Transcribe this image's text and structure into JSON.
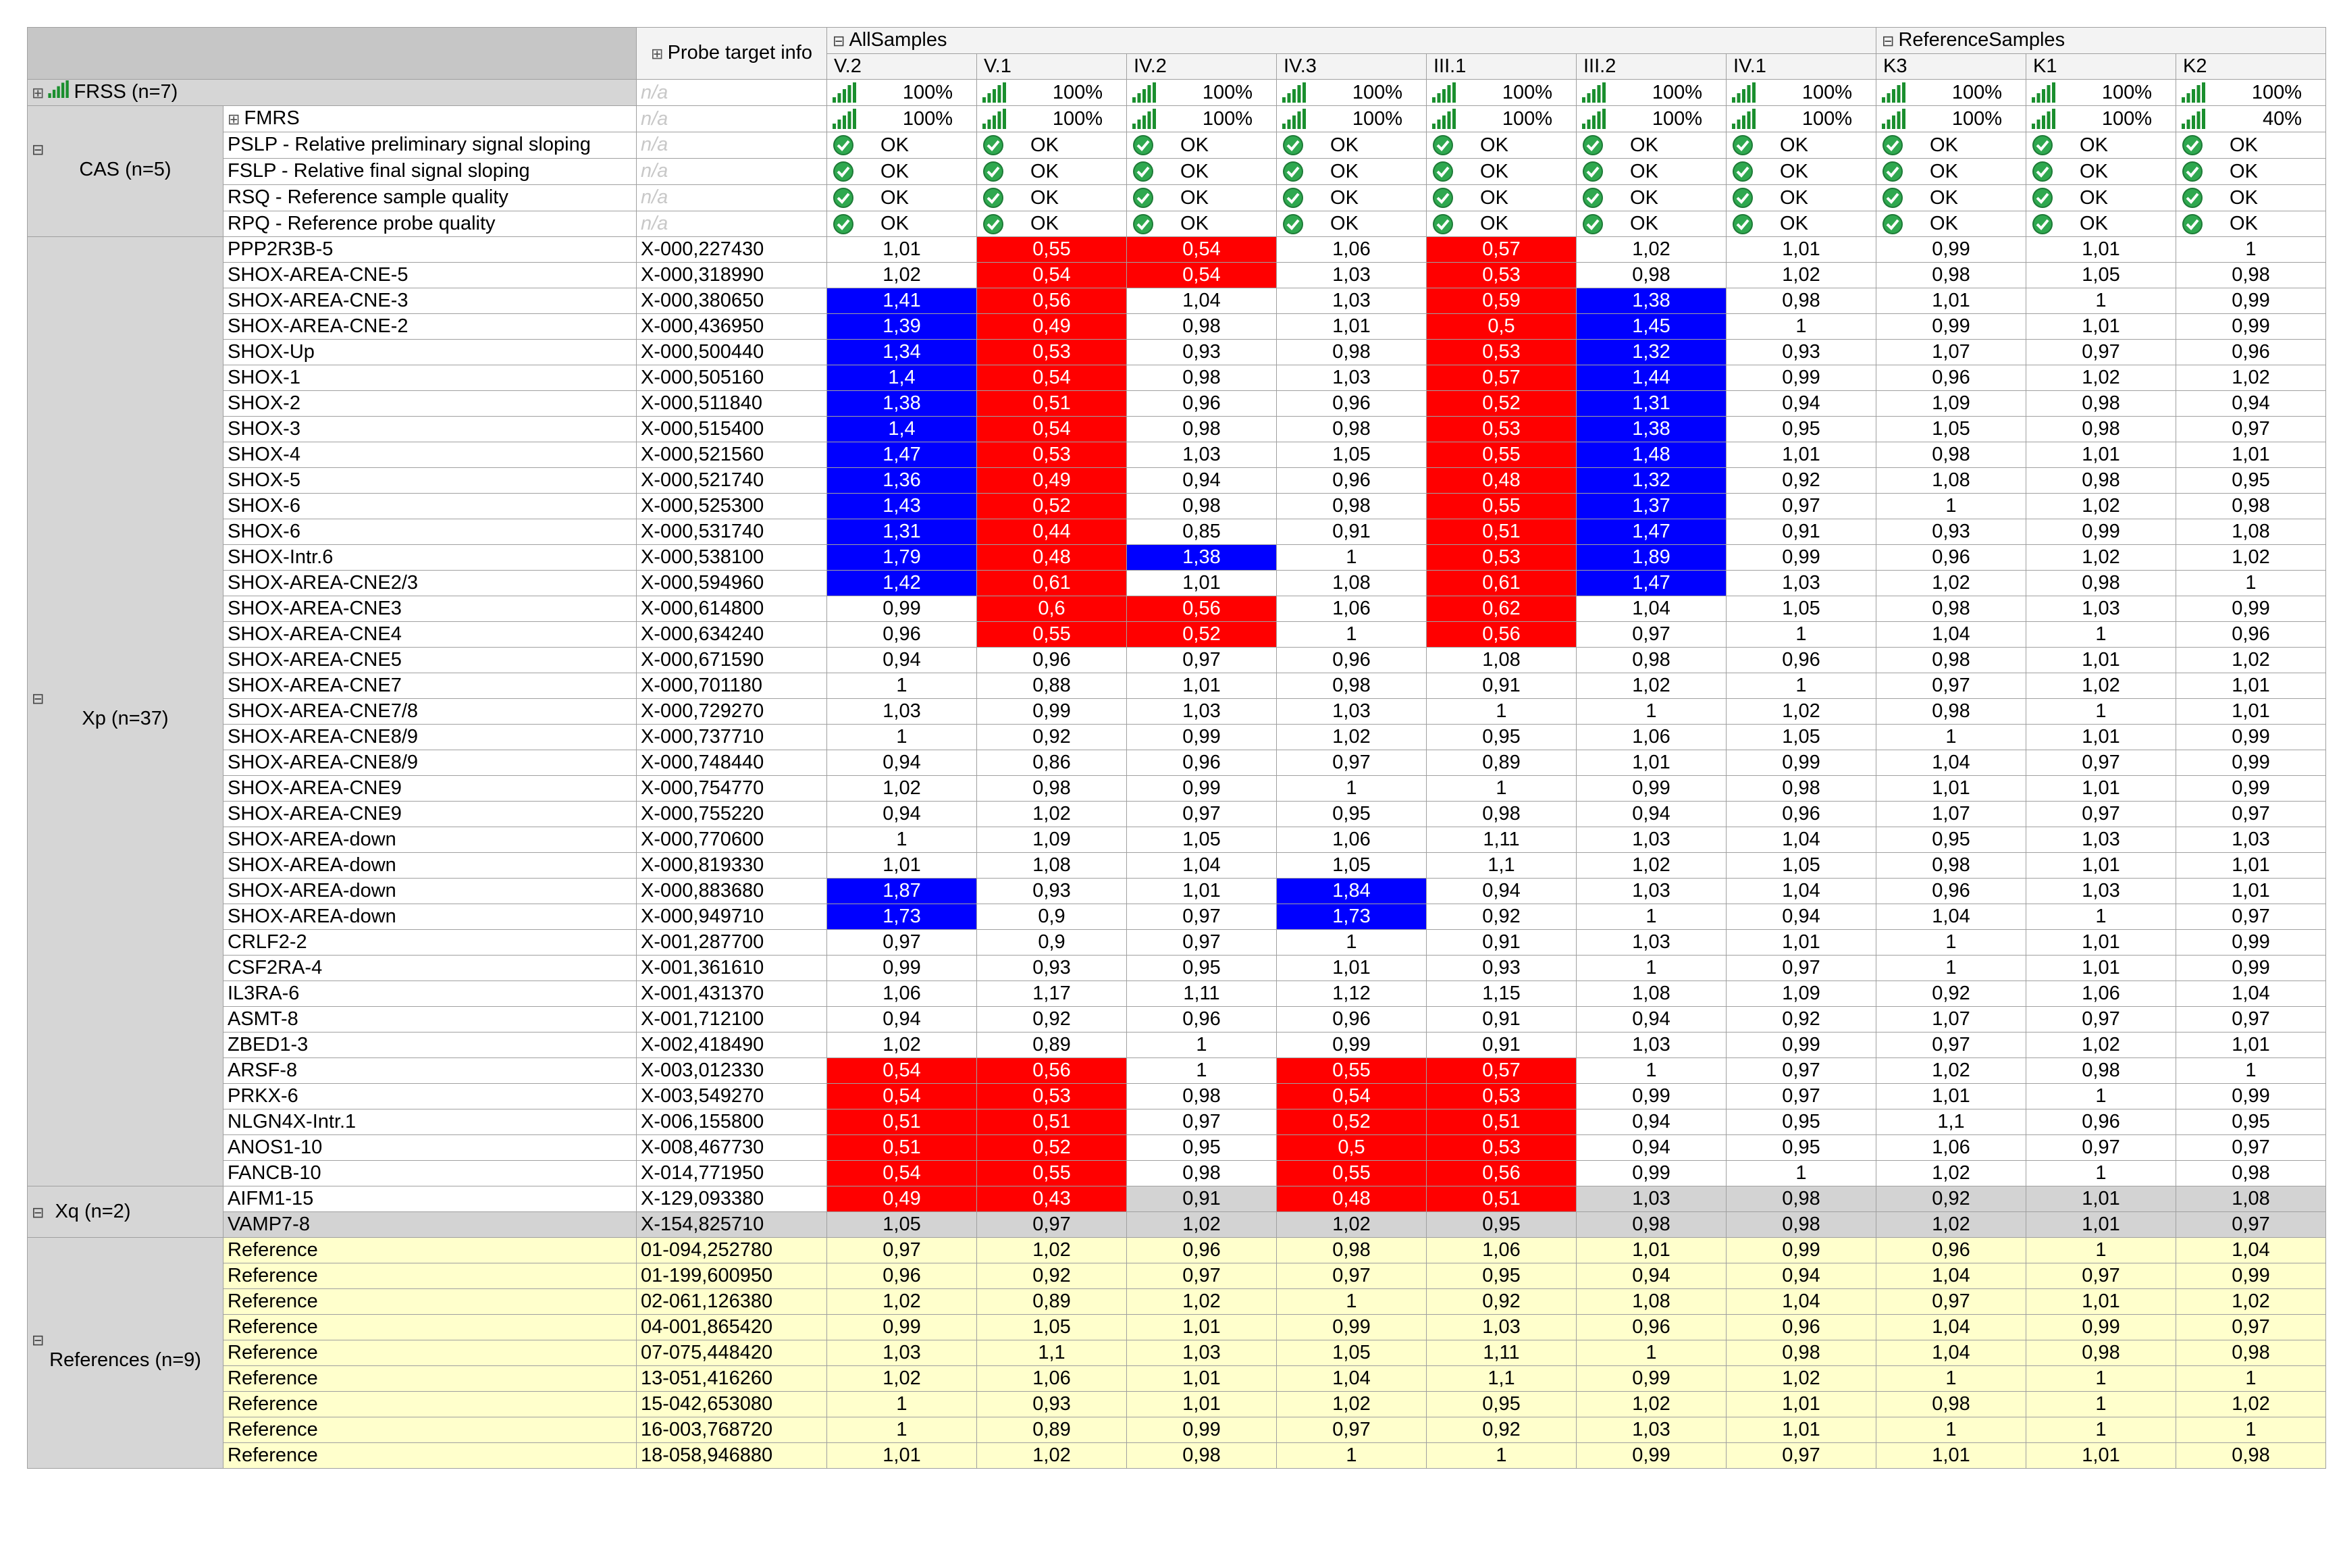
{
  "header": {
    "probe_target_info": "Probe target info",
    "groups": [
      {
        "label": "AllSamples",
        "span": 7
      },
      {
        "label": "ReferenceSamples",
        "span": 3
      }
    ],
    "samples": [
      "V.2",
      "V.1",
      "IV.2",
      "IV.3",
      "III.1",
      "III.2",
      "IV.1",
      "K3",
      "K1",
      "K2"
    ]
  },
  "colors": {
    "decrease": "#ff0000",
    "increase": "#0000ff",
    "reference_row": "#ffffcc",
    "x_row_alt": "#d3d3d3",
    "header_bg": "#c6c6c6",
    "quality_bars": "#1a8f2e"
  },
  "frss": {
    "label": "FRSS (n=7)",
    "probe": "n/a",
    "values": [
      "100%",
      "100%",
      "100%",
      "100%",
      "100%",
      "100%",
      "100%",
      "100%",
      "100%",
      "100%"
    ]
  },
  "cas": {
    "label": "CAS (n=5)",
    "rows": [
      {
        "name": "FMRS",
        "type": "quality",
        "probe": "n/a",
        "values": [
          "100%",
          "100%",
          "100%",
          "100%",
          "100%",
          "100%",
          "100%",
          "100%",
          "100%",
          "40%"
        ]
      },
      {
        "name": "PSLP - Relative preliminary signal sloping",
        "type": "ok",
        "probe": "n/a",
        "values": [
          "OK",
          "OK",
          "OK",
          "OK",
          "OK",
          "OK",
          "OK",
          "OK",
          "OK",
          "OK"
        ]
      },
      {
        "name": "FSLP - Relative final signal sloping",
        "type": "ok",
        "probe": "n/a",
        "values": [
          "OK",
          "OK",
          "OK",
          "OK",
          "OK",
          "OK",
          "OK",
          "OK",
          "OK",
          "OK"
        ]
      },
      {
        "name": "RSQ - Reference sample quality",
        "type": "ok",
        "probe": "n/a",
        "values": [
          "OK",
          "OK",
          "OK",
          "OK",
          "OK",
          "OK",
          "OK",
          "OK",
          "OK",
          "OK"
        ]
      },
      {
        "name": "RPQ - Reference probe quality",
        "type": "ok",
        "probe": "n/a",
        "values": [
          "OK",
          "OK",
          "OK",
          "OK",
          "OK",
          "OK",
          "OK",
          "OK",
          "OK",
          "OK"
        ]
      }
    ]
  },
  "xp": {
    "label": "Xp (n=37)",
    "rows": [
      {
        "name": "PPP2R3B-5",
        "probe": "X-000,227430",
        "values": [
          "1,01",
          "0,55",
          "0,54",
          "1,06",
          "0,57",
          "1,02",
          "1,01",
          "0,99",
          "1,01",
          "1"
        ],
        "flags": "WRRWRWWWWW"
      },
      {
        "name": "SHOX-AREA-CNE-5",
        "probe": "X-000,318990",
        "values": [
          "1,02",
          "0,54",
          "0,54",
          "1,03",
          "0,53",
          "0,98",
          "1,02",
          "0,98",
          "1,05",
          "0,98"
        ],
        "flags": "WRRWRWWWWW"
      },
      {
        "name": "SHOX-AREA-CNE-3",
        "probe": "X-000,380650",
        "values": [
          "1,41",
          "0,56",
          "1,04",
          "1,03",
          "0,59",
          "1,38",
          "0,98",
          "1,01",
          "1",
          "0,99"
        ],
        "flags": "BRWWRBWWWW"
      },
      {
        "name": "SHOX-AREA-CNE-2",
        "probe": "X-000,436950",
        "values": [
          "1,39",
          "0,49",
          "0,98",
          "1,01",
          "0,5",
          "1,45",
          "1",
          "0,99",
          "1,01",
          "0,99"
        ],
        "flags": "BRWWRBWWWW"
      },
      {
        "name": "SHOX-Up",
        "probe": "X-000,500440",
        "values": [
          "1,34",
          "0,53",
          "0,93",
          "0,98",
          "0,53",
          "1,32",
          "0,93",
          "1,07",
          "0,97",
          "0,96"
        ],
        "flags": "BRWWRBWWWW"
      },
      {
        "name": "SHOX-1",
        "probe": "X-000,505160",
        "values": [
          "1,4",
          "0,54",
          "0,98",
          "1,03",
          "0,57",
          "1,44",
          "0,99",
          "0,96",
          "1,02",
          "1,02"
        ],
        "flags": "BRWWRBWWWW"
      },
      {
        "name": "SHOX-2",
        "probe": "X-000,511840",
        "values": [
          "1,38",
          "0,51",
          "0,96",
          "0,96",
          "0,52",
          "1,31",
          "0,94",
          "1,09",
          "0,98",
          "0,94"
        ],
        "flags": "BRWWRBWWWW"
      },
      {
        "name": "SHOX-3",
        "probe": "X-000,515400",
        "values": [
          "1,4",
          "0,54",
          "0,98",
          "0,98",
          "0,53",
          "1,38",
          "0,95",
          "1,05",
          "0,98",
          "0,97"
        ],
        "flags": "BRWWRBWWWW"
      },
      {
        "name": "SHOX-4",
        "probe": "X-000,521560",
        "values": [
          "1,47",
          "0,53",
          "1,03",
          "1,05",
          "0,55",
          "1,48",
          "1,01",
          "0,98",
          "1,01",
          "1,01"
        ],
        "flags": "BRWWRBWWWW"
      },
      {
        "name": "SHOX-5",
        "probe": "X-000,521740",
        "values": [
          "1,36",
          "0,49",
          "0,94",
          "0,96",
          "0,48",
          "1,32",
          "0,92",
          "1,08",
          "0,98",
          "0,95"
        ],
        "flags": "BRWWRBWWWW"
      },
      {
        "name": "SHOX-6",
        "probe": "X-000,525300",
        "values": [
          "1,43",
          "0,52",
          "0,98",
          "0,98",
          "0,55",
          "1,37",
          "0,97",
          "1",
          "1,02",
          "0,98"
        ],
        "flags": "BRWWRBWWWW"
      },
      {
        "name": "SHOX-6",
        "probe": "X-000,531740",
        "values": [
          "1,31",
          "0,44",
          "0,85",
          "0,91",
          "0,51",
          "1,47",
          "0,91",
          "0,93",
          "0,99",
          "1,08"
        ],
        "flags": "BRWWRBWWWW"
      },
      {
        "name": "SHOX-Intr.6",
        "probe": "X-000,538100",
        "values": [
          "1,79",
          "0,48",
          "1,38",
          "1",
          "0,53",
          "1,89",
          "0,99",
          "0,96",
          "1,02",
          "1,02"
        ],
        "flags": "BRBWRBWWWW"
      },
      {
        "name": "SHOX-AREA-CNE2/3",
        "probe": "X-000,594960",
        "values": [
          "1,42",
          "0,61",
          "1,01",
          "1,08",
          "0,61",
          "1,47",
          "1,03",
          "1,02",
          "0,98",
          "1"
        ],
        "flags": "BRWWRBWWWW"
      },
      {
        "name": "SHOX-AREA-CNE3",
        "probe": "X-000,614800",
        "values": [
          "0,99",
          "0,6",
          "0,56",
          "1,06",
          "0,62",
          "1,04",
          "1,05",
          "0,98",
          "1,03",
          "0,99"
        ],
        "flags": "WRRWRWWWWW"
      },
      {
        "name": "SHOX-AREA-CNE4",
        "probe": "X-000,634240",
        "values": [
          "0,96",
          "0,55",
          "0,52",
          "1",
          "0,56",
          "0,97",
          "1",
          "1,04",
          "1",
          "0,96"
        ],
        "flags": "WRRWRWWWWW"
      },
      {
        "name": "SHOX-AREA-CNE5",
        "probe": "X-000,671590",
        "values": [
          "0,94",
          "0,96",
          "0,97",
          "0,96",
          "1,08",
          "0,98",
          "0,96",
          "0,98",
          "1,01",
          "1,02"
        ],
        "flags": "WWWWWWWWWW"
      },
      {
        "name": "SHOX-AREA-CNE7",
        "probe": "X-000,701180",
        "values": [
          "1",
          "0,88",
          "1,01",
          "0,98",
          "0,91",
          "1,02",
          "1",
          "0,97",
          "1,02",
          "1,01"
        ],
        "flags": "WWWWWWWWWW"
      },
      {
        "name": "SHOX-AREA-CNE7/8",
        "probe": "X-000,729270",
        "values": [
          "1,03",
          "0,99",
          "1,03",
          "1,03",
          "1",
          "1",
          "1,02",
          "0,98",
          "1",
          "1,01"
        ],
        "flags": "WWWWWWWWWW"
      },
      {
        "name": "SHOX-AREA-CNE8/9",
        "probe": "X-000,737710",
        "values": [
          "1",
          "0,92",
          "0,99",
          "1,02",
          "0,95",
          "1,06",
          "1,05",
          "1",
          "1,01",
          "0,99"
        ],
        "flags": "WWWWWWWWWW"
      },
      {
        "name": "SHOX-AREA-CNE8/9",
        "probe": "X-000,748440",
        "values": [
          "0,94",
          "0,86",
          "0,96",
          "0,97",
          "0,89",
          "1,01",
          "0,99",
          "1,04",
          "0,97",
          "0,99"
        ],
        "flags": "WWWWWWWWWW"
      },
      {
        "name": "SHOX-AREA-CNE9",
        "probe": "X-000,754770",
        "values": [
          "1,02",
          "0,98",
          "0,99",
          "1",
          "1",
          "0,99",
          "0,98",
          "1,01",
          "1,01",
          "0,99"
        ],
        "flags": "WWWWWWWWWW"
      },
      {
        "name": "SHOX-AREA-CNE9",
        "probe": "X-000,755220",
        "values": [
          "0,94",
          "1,02",
          "0,97",
          "0,95",
          "0,98",
          "0,94",
          "0,96",
          "1,07",
          "0,97",
          "0,97"
        ],
        "flags": "WWWWWWWWWW"
      },
      {
        "name": "SHOX-AREA-down",
        "probe": "X-000,770600",
        "values": [
          "1",
          "1,09",
          "1,05",
          "1,06",
          "1,11",
          "1,03",
          "1,04",
          "0,95",
          "1,03",
          "1,03"
        ],
        "flags": "WWWWWWWWWW"
      },
      {
        "name": "SHOX-AREA-down",
        "probe": "X-000,819330",
        "values": [
          "1,01",
          "1,08",
          "1,04",
          "1,05",
          "1,1",
          "1,02",
          "1,05",
          "0,98",
          "1,01",
          "1,01"
        ],
        "flags": "WWWWWWWWWW"
      },
      {
        "name": "SHOX-AREA-down",
        "probe": "X-000,883680",
        "values": [
          "1,87",
          "0,93",
          "1,01",
          "1,84",
          "0,94",
          "1,03",
          "1,04",
          "0,96",
          "1,03",
          "1,01"
        ],
        "flags": "BWWBWWWWWW"
      },
      {
        "name": "SHOX-AREA-down",
        "probe": "X-000,949710",
        "values": [
          "1,73",
          "0,9",
          "0,97",
          "1,73",
          "0,92",
          "1",
          "0,94",
          "1,04",
          "1",
          "0,97"
        ],
        "flags": "BWWBWWWWWW"
      },
      {
        "name": "CRLF2-2",
        "probe": "X-001,287700",
        "values": [
          "0,97",
          "0,9",
          "0,97",
          "1",
          "0,91",
          "1,03",
          "1,01",
          "1",
          "1,01",
          "0,99"
        ],
        "flags": "WWWWWWWWWW"
      },
      {
        "name": "CSF2RA-4",
        "probe": "X-001,361610",
        "values": [
          "0,99",
          "0,93",
          "0,95",
          "1,01",
          "0,93",
          "1",
          "0,97",
          "1",
          "1,01",
          "0,99"
        ],
        "flags": "WWWWWWWWWW"
      },
      {
        "name": "IL3RA-6",
        "probe": "X-001,431370",
        "values": [
          "1,06",
          "1,17",
          "1,11",
          "1,12",
          "1,15",
          "1,08",
          "1,09",
          "0,92",
          "1,06",
          "1,04"
        ],
        "flags": "WWWWWWWWWW"
      },
      {
        "name": "ASMT-8",
        "probe": "X-001,712100",
        "values": [
          "0,94",
          "0,92",
          "0,96",
          "0,96",
          "0,91",
          "0,94",
          "0,92",
          "1,07",
          "0,97",
          "0,97"
        ],
        "flags": "WWWWWWWWWW"
      },
      {
        "name": "ZBED1-3",
        "probe": "X-002,418490",
        "values": [
          "1,02",
          "0,89",
          "1",
          "0,99",
          "0,91",
          "1,03",
          "0,99",
          "0,97",
          "1,02",
          "1,01"
        ],
        "flags": "WWWWWWWWWW"
      },
      {
        "name": "ARSF-8",
        "probe": "X-003,012330",
        "values": [
          "0,54",
          "0,56",
          "1",
          "0,55",
          "0,57",
          "1",
          "0,97",
          "1,02",
          "0,98",
          "1"
        ],
        "flags": "RRWRRWWWWW"
      },
      {
        "name": "PRKX-6",
        "probe": "X-003,549270",
        "values": [
          "0,54",
          "0,53",
          "0,98",
          "0,54",
          "0,53",
          "0,99",
          "0,97",
          "1,01",
          "1",
          "0,99"
        ],
        "flags": "RRWRRWWWWW"
      },
      {
        "name": "NLGN4X-Intr.1",
        "probe": "X-006,155800",
        "values": [
          "0,51",
          "0,51",
          "0,97",
          "0,52",
          "0,51",
          "0,94",
          "0,95",
          "1,1",
          "0,96",
          "0,95"
        ],
        "flags": "RRWRRWWWWW"
      },
      {
        "name": "ANOS1-10",
        "probe": "X-008,467730",
        "values": [
          "0,51",
          "0,52",
          "0,95",
          "0,5",
          "0,53",
          "0,94",
          "0,95",
          "1,06",
          "0,97",
          "0,97"
        ],
        "flags": "RRWRRWWWWW"
      },
      {
        "name": "FANCB-10",
        "probe": "X-014,771950",
        "values": [
          "0,54",
          "0,55",
          "0,98",
          "0,55",
          "0,56",
          "0,99",
          "1",
          "1,02",
          "1",
          "0,98"
        ],
        "flags": "RRWRRWWWWW"
      }
    ]
  },
  "xq": {
    "label": "Xq (n=2)",
    "rows": [
      {
        "name": "AIFM1-15",
        "probe": "X-129,093380",
        "values": [
          "0,49",
          "0,43",
          "0,91",
          "0,48",
          "0,51",
          "1,03",
          "0,98",
          "0,92",
          "1,01",
          "1,08"
        ],
        "flags": "RRGRRGGGGG"
      },
      {
        "name": "VAMP7-8",
        "probe": "X-154,825710",
        "values": [
          "1,05",
          "0,97",
          "1,02",
          "1,02",
          "0,95",
          "0,98",
          "0,98",
          "1,02",
          "1,01",
          "0,97"
        ],
        "flags": "GGGGGGGGGG"
      }
    ]
  },
  "references": {
    "label": "References (n=9)",
    "rows": [
      {
        "name": "Reference",
        "probe": "01-094,252780",
        "values": [
          "0,97",
          "1,02",
          "0,96",
          "0,98",
          "1,06",
          "1,01",
          "0,99",
          "0,96",
          "1",
          "1,04"
        ]
      },
      {
        "name": "Reference",
        "probe": "01-199,600950",
        "values": [
          "0,96",
          "0,92",
          "0,97",
          "0,97",
          "0,95",
          "0,94",
          "0,94",
          "1,04",
          "0,97",
          "0,99"
        ]
      },
      {
        "name": "Reference",
        "probe": "02-061,126380",
        "values": [
          "1,02",
          "0,89",
          "1,02",
          "1",
          "0,92",
          "1,08",
          "1,04",
          "0,97",
          "1,01",
          "1,02"
        ]
      },
      {
        "name": "Reference",
        "probe": "04-001,865420",
        "values": [
          "0,99",
          "1,05",
          "1,01",
          "0,99",
          "1,03",
          "0,96",
          "0,96",
          "1,04",
          "0,99",
          "0,97"
        ]
      },
      {
        "name": "Reference",
        "probe": "07-075,448420",
        "values": [
          "1,03",
          "1,1",
          "1,03",
          "1,05",
          "1,11",
          "1",
          "0,98",
          "1,04",
          "0,98",
          "0,98"
        ]
      },
      {
        "name": "Reference",
        "probe": "13-051,416260",
        "values": [
          "1,02",
          "1,06",
          "1,01",
          "1,04",
          "1,1",
          "0,99",
          "1,02",
          "1",
          "1",
          "1"
        ]
      },
      {
        "name": "Reference",
        "probe": "15-042,653080",
        "values": [
          "1",
          "0,93",
          "1,01",
          "1,02",
          "0,95",
          "1,02",
          "1,01",
          "0,98",
          "1",
          "1,02"
        ]
      },
      {
        "name": "Reference",
        "probe": "16-003,768720",
        "values": [
          "1",
          "0,89",
          "0,99",
          "0,97",
          "0,92",
          "1,03",
          "1,01",
          "1",
          "1",
          "1"
        ]
      },
      {
        "name": "Reference",
        "probe": "18-058,946880",
        "values": [
          "1,01",
          "1,02",
          "0,98",
          "1",
          "1",
          "0,99",
          "0,97",
          "1,01",
          "1,01",
          "0,98"
        ]
      }
    ]
  }
}
